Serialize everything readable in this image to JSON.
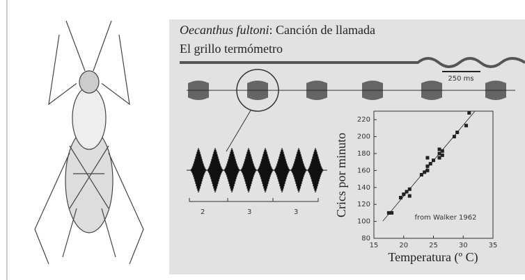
{
  "header": {
    "species": "Oecanthus fultoni",
    "title_rest": ": Canción de llamada",
    "subtitle": "El grillo termómetro"
  },
  "waveform": {
    "scale_label": "250 ms",
    "groups": [
      "2",
      "3",
      "3"
    ]
  },
  "chart_data": {
    "type": "scatter",
    "annotation": "from Walker 1962",
    "x_label": "Temperatura (º C)",
    "y_label": "Crics por minuto",
    "x": [
      17.5,
      18,
      19.5,
      20,
      20.5,
      21,
      21,
      23,
      23.5,
      24,
      24,
      24,
      24.5,
      25,
      26,
      26,
      26,
      26.5,
      26.5,
      28.5,
      29,
      30.5,
      31
    ],
    "values": [
      110,
      110,
      128,
      132,
      135,
      130,
      138,
      155,
      158,
      160,
      165,
      175,
      168,
      172,
      175,
      180,
      185,
      178,
      183,
      200,
      205,
      213,
      228
    ],
    "color": "#222222",
    "xlim": [
      15,
      35
    ],
    "xticks": [
      15,
      20,
      25,
      30,
      35
    ],
    "ylim": [
      80,
      230
    ],
    "yticks": [
      80,
      100,
      120,
      140,
      160,
      180,
      200,
      220
    ]
  }
}
